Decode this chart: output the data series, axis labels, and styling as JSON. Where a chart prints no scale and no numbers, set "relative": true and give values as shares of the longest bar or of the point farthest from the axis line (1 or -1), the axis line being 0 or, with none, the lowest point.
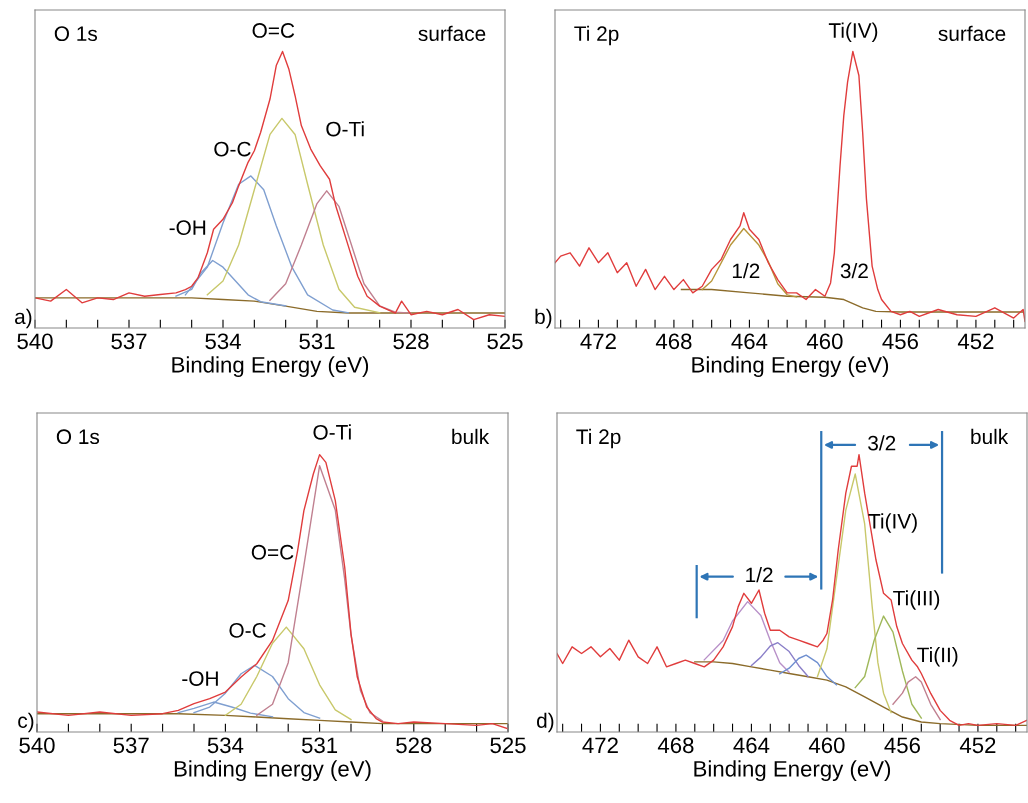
{
  "chart_data": [
    {
      "type": "line",
      "relative": true,
      "xlabel": "Binding Energy (eV)",
      "xlim": [
        540,
        525
      ],
      "tick_labels": "x",
      "line_style": "solid",
      "xticks": [
        540,
        {
          "value": 539,
          "label": null
        },
        {
          "value": 538,
          "label": null
        },
        537,
        {
          "value": 536,
          "label": null
        },
        {
          "value": 535,
          "label": null
        },
        534,
        {
          "value": 533,
          "label": null
        },
        {
          "value": 532,
          "label": null
        },
        531,
        {
          "value": 530,
          "label": null
        },
        {
          "value": 529,
          "label": null
        },
        528,
        {
          "value": 527,
          "label": null
        },
        {
          "value": 526,
          "label": null
        },
        525
      ],
      "annotations": [
        "O 1s",
        "surface",
        "a)",
        "O=C",
        "O-Ti",
        "O-C",
        "-OH"
      ],
      "series": [
        {
          "color": "#8b6b2a",
          "x": [
            540,
            535,
            534,
            533,
            532,
            531,
            530,
            525
          ],
          "values": [
            0.109,
            0.109,
            0.103,
            0.097,
            0.079,
            0.06,
            0.054,
            0.054
          ]
        },
        {
          "color": "#7f9fd0",
          "x": [
            535.5,
            535,
            534.7,
            534.33,
            534,
            533.6,
            533.2,
            532.8,
            532
          ],
          "values": [
            0.115,
            0.14,
            0.2,
            0.244,
            0.22,
            0.17,
            0.12,
            0.095,
            0.08
          ]
        },
        {
          "color": "#7f9fd0",
          "x": [
            535.2,
            534.5,
            534,
            533.5,
            533.11,
            532.7,
            532.3,
            531.8,
            531.3,
            530.5,
            530
          ],
          "values": [
            0.12,
            0.22,
            0.38,
            0.52,
            0.55,
            0.5,
            0.37,
            0.22,
            0.12,
            0.065,
            0.055
          ]
        },
        {
          "color": "#c8c86a",
          "x": [
            534.5,
            534,
            533.5,
            533,
            532.5,
            532.12,
            531.7,
            531.3,
            530.8,
            530.3,
            529.8,
            529
          ],
          "values": [
            0.12,
            0.17,
            0.3,
            0.5,
            0.7,
            0.758,
            0.7,
            0.52,
            0.3,
            0.14,
            0.075,
            0.055
          ]
        },
        {
          "color": "#c08090",
          "x": [
            532.5,
            532,
            531.5,
            531,
            530.69,
            530.3,
            529.9,
            529.5,
            529,
            528.5,
            528
          ],
          "values": [
            0.1,
            0.16,
            0.3,
            0.45,
            0.496,
            0.44,
            0.3,
            0.16,
            0.08,
            0.057,
            0.054
          ]
        },
        {
          "color": "#e03c3c",
          "x": [
            540,
            539.5,
            539,
            538.5,
            538,
            537.5,
            537,
            536.5,
            536,
            535.5,
            535.2,
            535,
            534.8,
            534.5,
            534.3,
            534,
            533.7,
            533.5,
            533.2,
            533,
            532.8,
            532.5,
            532.3,
            532.1,
            531.9,
            531.7,
            531.5,
            531.2,
            530.9,
            530.6,
            530.4,
            530.2,
            530,
            529.7,
            529.4,
            529,
            528.5,
            528.3,
            528,
            527.5,
            527,
            526.5,
            526,
            525.5,
            525
          ],
          "values": [
            0.109,
            0.097,
            0.139,
            0.091,
            0.109,
            0.103,
            0.127,
            0.115,
            0.121,
            0.127,
            0.139,
            0.151,
            0.181,
            0.272,
            0.357,
            0.393,
            0.453,
            0.514,
            0.599,
            0.641,
            0.707,
            0.828,
            0.949,
            1.0,
            0.937,
            0.84,
            0.732,
            0.647,
            0.587,
            0.538,
            0.441,
            0.369,
            0.296,
            0.187,
            0.115,
            0.079,
            0.054,
            0.097,
            0.048,
            0.06,
            0.048,
            0.067,
            0.03,
            0.048,
            0.042
          ]
        }
      ]
    },
    {
      "type": "line",
      "relative": true,
      "xlabel": "Binding Energy (eV)",
      "xlim": [
        474.3,
        449.4
      ],
      "tick_labels": "x",
      "line_style": "solid",
      "xticks": [
        {
          "value": 474,
          "label": null
        },
        {
          "value": 473,
          "label": null
        },
        472,
        {
          "value": 471,
          "label": null
        },
        {
          "value": 470,
          "label": null
        },
        {
          "value": 469,
          "label": null
        },
        468,
        {
          "value": 467,
          "label": null
        },
        {
          "value": 466,
          "label": null
        },
        {
          "value": 465,
          "label": null
        },
        464,
        {
          "value": 463,
          "label": null
        },
        {
          "value": 462,
          "label": null
        },
        {
          "value": 461,
          "label": null
        },
        460,
        {
          "value": 459,
          "label": null
        },
        {
          "value": 458,
          "label": null
        },
        {
          "value": 457,
          "label": null
        },
        456,
        {
          "value": 455,
          "label": null
        },
        {
          "value": 454,
          "label": null
        },
        {
          "value": 453,
          "label": null
        },
        452,
        {
          "value": 451,
          "label": null
        },
        {
          "value": 450,
          "label": null
        }
      ],
      "annotations": [
        "Ti 2p",
        "surface",
        "b)",
        "Ti(IV)",
        "1/2",
        "3/2"
      ],
      "series": [
        {
          "color": "#8b6b2a",
          "x": [
            467.6,
            466,
            464,
            462,
            460,
            459,
            458,
            457.3,
            456,
            452,
            449.5
          ],
          "values": [
            0.139,
            0.139,
            0.127,
            0.115,
            0.111,
            0.103,
            0.073,
            0.06,
            0.058,
            0.058,
            0.058
          ]
        },
        {
          "color": "#b8963a",
          "x": [
            466.5,
            466,
            465,
            464.3,
            463.5,
            463,
            462.5,
            462,
            461.5
          ],
          "values": [
            0.139,
            0.17,
            0.3,
            0.36,
            0.3,
            0.24,
            0.16,
            0.12,
            0.112
          ]
        },
        {
          "color": "#e03c3c",
          "x": [
            474.3,
            474,
            473.5,
            473,
            472.5,
            472,
            471.5,
            471,
            470.5,
            470,
            469.5,
            469,
            468.5,
            468,
            467.5,
            467,
            466.5,
            466,
            465.5,
            465,
            464.5,
            464.3,
            464,
            463.5,
            463,
            462.5,
            462,
            461.5,
            461,
            460.5,
            460,
            459.7,
            459.5,
            459.2,
            459,
            458.8,
            458.52,
            458.2,
            458,
            457.8,
            457.5,
            457.2,
            457,
            456.5,
            456,
            455.5,
            455,
            454,
            453,
            452,
            451,
            450,
            449.5,
            449.4
          ],
          "values": [
            0.236,
            0.26,
            0.272,
            0.224,
            0.29,
            0.236,
            0.272,
            0.2,
            0.236,
            0.151,
            0.212,
            0.139,
            0.187,
            0.139,
            0.175,
            0.127,
            0.151,
            0.212,
            0.248,
            0.32,
            0.369,
            0.417,
            0.357,
            0.32,
            0.236,
            0.175,
            0.127,
            0.127,
            0.103,
            0.139,
            0.115,
            0.163,
            0.272,
            0.586,
            0.768,
            0.889,
            1.0,
            0.913,
            0.707,
            0.466,
            0.224,
            0.139,
            0.103,
            0.06,
            0.048,
            0.06,
            0.042,
            0.067,
            0.048,
            0.042,
            0.073,
            0.036,
            0.067,
            0.024
          ]
        }
      ]
    },
    {
      "type": "line",
      "relative": true,
      "xlabel": "Binding Energy (eV)",
      "xlim": [
        540,
        525
      ],
      "tick_labels": "x",
      "line_style": "solid",
      "xticks": [
        540,
        {
          "value": 539,
          "label": null
        },
        {
          "value": 538,
          "label": null
        },
        537,
        {
          "value": 536,
          "label": null
        },
        {
          "value": 535,
          "label": null
        },
        534,
        {
          "value": 533,
          "label": null
        },
        {
          "value": 532,
          "label": null
        },
        531,
        {
          "value": 530,
          "label": null
        },
        {
          "value": 529,
          "label": null
        },
        528,
        {
          "value": 527,
          "label": null
        },
        {
          "value": 526,
          "label": null
        },
        525
      ],
      "annotations": [
        "O 1s",
        "bulk",
        "c)",
        "O-Ti",
        "O=C",
        "O-C",
        "-OH"
      ],
      "series": [
        {
          "color": "#8b6b2a",
          "x": [
            540,
            535.5,
            534,
            533,
            532,
            531,
            530,
            529,
            525
          ],
          "values": [
            0.066,
            0.066,
            0.06,
            0.054,
            0.048,
            0.042,
            0.036,
            0.03,
            0.03
          ]
        },
        {
          "color": "#7f9fd0",
          "x": [
            535.5,
            535,
            534.37,
            533.8,
            533.2,
            532.5
          ],
          "values": [
            0.07,
            0.085,
            0.108,
            0.09,
            0.068,
            0.055
          ]
        },
        {
          "color": "#7f9fd0",
          "x": [
            535,
            534.5,
            534,
            533.5,
            533.07,
            532.5,
            532,
            531.5,
            531
          ],
          "values": [
            0.07,
            0.09,
            0.14,
            0.21,
            0.24,
            0.2,
            0.12,
            0.07,
            0.05
          ]
        },
        {
          "color": "#c8c86a",
          "x": [
            534,
            533.5,
            533,
            532.5,
            532.06,
            531.5,
            531,
            530.5,
            530
          ],
          "values": [
            0.06,
            0.1,
            0.2,
            0.32,
            0.378,
            0.3,
            0.17,
            0.08,
            0.045
          ]
        },
        {
          "color": "#c08090",
          "x": [
            533,
            532.5,
            532,
            531.5,
            531,
            530.5,
            530.2,
            530,
            529.7,
            529.4,
            529
          ],
          "values": [
            0.06,
            0.1,
            0.25,
            0.6,
            0.96,
            0.8,
            0.55,
            0.35,
            0.15,
            0.07,
            0.04
          ]
        },
        {
          "color": "#e03c3c",
          "x": [
            540,
            539,
            538,
            537,
            536,
            535.5,
            535,
            534.5,
            534,
            533.5,
            533,
            532.5,
            532,
            531.7,
            531.5,
            531.2,
            531,
            530.8,
            530.5,
            530.2,
            530,
            529.8,
            529.5,
            529.2,
            529,
            528.5,
            528,
            527,
            526,
            525.5,
            525
          ],
          "values": [
            0.072,
            0.06,
            0.072,
            0.06,
            0.066,
            0.078,
            0.102,
            0.12,
            0.144,
            0.198,
            0.246,
            0.33,
            0.474,
            0.654,
            0.798,
            0.93,
            1.0,
            0.972,
            0.834,
            0.594,
            0.354,
            0.198,
            0.09,
            0.048,
            0.036,
            0.03,
            0.036,
            0.03,
            0.024,
            0.03,
            0.012
          ]
        }
      ]
    },
    {
      "type": "line",
      "relative": true,
      "xlabel": "Binding Energy (eV)",
      "xlim": [
        474.3,
        449.4
      ],
      "tick_labels": "x",
      "line_style": "solid",
      "xticks": [
        {
          "value": 474,
          "label": null
        },
        {
          "value": 473,
          "label": null
        },
        472,
        {
          "value": 471,
          "label": null
        },
        {
          "value": 470,
          "label": null
        },
        {
          "value": 469,
          "label": null
        },
        468,
        {
          "value": 467,
          "label": null
        },
        {
          "value": 466,
          "label": null
        },
        {
          "value": 465,
          "label": null
        },
        464,
        {
          "value": 463,
          "label": null
        },
        {
          "value": 462,
          "label": null
        },
        {
          "value": 461,
          "label": null
        },
        460,
        {
          "value": 459,
          "label": null
        },
        {
          "value": 458,
          "label": null
        },
        {
          "value": 457,
          "label": null
        },
        456,
        {
          "value": 455,
          "label": null
        },
        {
          "value": 454,
          "label": null
        },
        {
          "value": 453,
          "label": null
        },
        452,
        {
          "value": 451,
          "label": null
        },
        {
          "value": 450,
          "label": null
        }
      ],
      "annotations": [
        "Ti 2p",
        "bulk",
        "d)",
        "Ti(IV)",
        "Ti(III)",
        "Ti(II)",
        "1/2",
        "3/2"
      ],
      "ref_lines": [
        {
          "axis": "x",
          "value": 466.9,
          "color": "#2e75b6"
        },
        {
          "axis": "x",
          "value": 460.3,
          "color": "#2e75b6"
        },
        {
          "axis": "x",
          "value": 453.9,
          "color": "#2e75b6"
        }
      ],
      "series": [
        {
          "color": "#8b6b2a",
          "x": [
            467,
            466,
            465,
            464,
            463,
            462,
            461,
            460,
            459,
            458,
            457,
            456,
            455,
            454,
            452,
            449.4
          ],
          "values": [
            0.253,
            0.253,
            0.247,
            0.235,
            0.223,
            0.211,
            0.199,
            0.187,
            0.163,
            0.127,
            0.09,
            0.054,
            0.036,
            0.03,
            0.024,
            0.024
          ]
        },
        {
          "color": "#b890c8",
          "x": [
            466.5,
            465.5,
            465,
            464.2,
            463.5,
            463,
            462.5,
            462
          ],
          "values": [
            0.26,
            0.33,
            0.4,
            0.47,
            0.42,
            0.33,
            0.25,
            0.215
          ]
        },
        {
          "color": "#8a7fc8",
          "x": [
            464,
            463.5,
            463,
            462.6,
            462,
            461.5,
            461
          ],
          "values": [
            0.24,
            0.27,
            0.31,
            0.322,
            0.29,
            0.24,
            0.2
          ]
        },
        {
          "color": "#6f8fd0",
          "x": [
            462.5,
            462,
            461.5,
            461.1,
            460.5,
            460,
            459.5
          ],
          "values": [
            0.21,
            0.23,
            0.265,
            0.277,
            0.25,
            0.2,
            0.17
          ]
        },
        {
          "color": "#c8c86a",
          "x": [
            460.5,
            460,
            459.5,
            459,
            458.5,
            458,
            457.6,
            457.3,
            457,
            456.6
          ],
          "values": [
            0.2,
            0.3,
            0.55,
            0.8,
            0.93,
            0.75,
            0.45,
            0.25,
            0.14,
            0.07
          ]
        },
        {
          "color": "#9fb85a",
          "x": [
            458.5,
            458,
            457.5,
            457,
            456.5,
            456,
            455.5,
            455
          ],
          "values": [
            0.16,
            0.2,
            0.33,
            0.418,
            0.36,
            0.22,
            0.1,
            0.05
          ]
        },
        {
          "color": "#c08090",
          "x": [
            456.5,
            456,
            455.7,
            455.3,
            455,
            454.5,
            454
          ],
          "values": [
            0.1,
            0.14,
            0.18,
            0.199,
            0.18,
            0.1,
            0.045
          ]
        },
        {
          "color": "#e03c3c",
          "x": [
            474.3,
            474,
            473.5,
            473,
            472.5,
            472,
            471.5,
            471,
            470.5,
            470,
            469.5,
            469,
            468.5,
            468,
            467.5,
            467,
            466.5,
            466,
            465.5,
            465,
            464.7,
            464.4,
            464,
            463.6,
            463.3,
            463,
            462.5,
            462,
            461.5,
            461,
            460.5,
            460.2,
            460,
            459.7,
            459.4,
            459,
            458.7,
            458.4,
            458.3,
            458,
            457.7,
            457.4,
            457,
            456.6,
            456.3,
            456,
            455.5,
            455.2,
            455,
            454.5,
            454,
            453.5,
            453,
            452.5,
            452,
            451,
            450,
            449.4
          ],
          "values": [
            0.283,
            0.247,
            0.307,
            0.283,
            0.307,
            0.271,
            0.301,
            0.259,
            0.331,
            0.271,
            0.247,
            0.307,
            0.235,
            0.247,
            0.259,
            0.247,
            0.235,
            0.259,
            0.307,
            0.38,
            0.452,
            0.5,
            0.464,
            0.512,
            0.428,
            0.367,
            0.367,
            0.343,
            0.331,
            0.319,
            0.307,
            0.331,
            0.355,
            0.476,
            0.657,
            0.861,
            0.958,
            0.958,
            1.0,
            0.861,
            0.741,
            0.62,
            0.5,
            0.476,
            0.38,
            0.319,
            0.259,
            0.235,
            0.211,
            0.139,
            0.078,
            0.042,
            0.024,
            0.03,
            0.024,
            0.03,
            0.024,
            0.042
          ]
        }
      ]
    }
  ]
}
